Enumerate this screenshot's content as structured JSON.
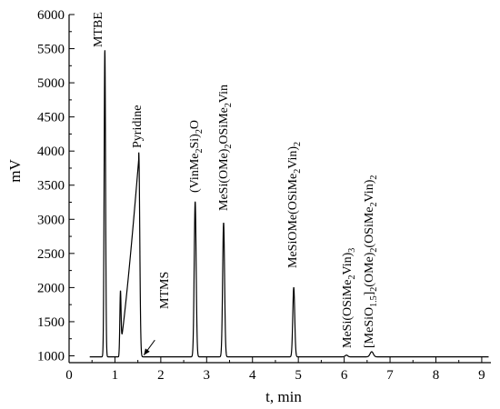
{
  "chart_data": {
    "type": "line",
    "title": "",
    "xlabel": "t, min",
    "ylabel": "mV",
    "xlim": [
      0,
      9.2
    ],
    "ylim": [
      900,
      6000
    ],
    "x_ticks": [
      0,
      1,
      2,
      3,
      4,
      5,
      6,
      7,
      8,
      9
    ],
    "y_ticks": [
      1000,
      1500,
      2000,
      2500,
      3000,
      3500,
      4000,
      4500,
      5000,
      5500,
      6000
    ],
    "grid": false,
    "legend": "none",
    "baseline": 985,
    "peaks": [
      {
        "label": "MTBE",
        "x": 0.78,
        "y": 5480
      },
      {
        "label": "",
        "x": 1.12,
        "y": 1810
      },
      {
        "label": "Pyridine",
        "x": 1.52,
        "y": 3980
      },
      {
        "label": "MTMS",
        "x": 1.62,
        "y": 1010
      },
      {
        "label": "(VinMe2Si)2O",
        "x": 2.75,
        "y": 3260
      },
      {
        "label": "MeSi(OMe)2OSiMe2Vin",
        "x": 3.37,
        "y": 2950
      },
      {
        "label": "MeSiOMe(OSiMe2Vin)2",
        "x": 4.9,
        "y": 2000
      },
      {
        "label": "MeSi(OSiMe2Vin)3",
        "x": 6.05,
        "y": 1010
      },
      {
        "label": "[MeSiO1.5]2(OMe)2(OSiMe2Vin)2",
        "x": 6.6,
        "y": 1060
      }
    ]
  }
}
